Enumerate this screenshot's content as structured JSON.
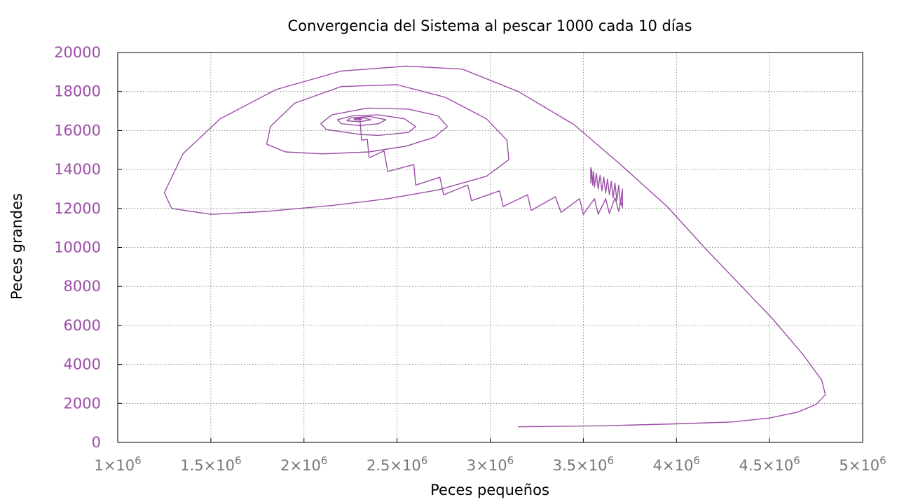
{
  "chart_data": {
    "type": "line",
    "title": "Convergencia del Sistema al pescar 1000 cada 10 días",
    "xlabel": "Peces pequeños",
    "ylabel": "Peces grandes",
    "xlim": [
      1000000,
      5000000
    ],
    "ylim": [
      0,
      20000
    ],
    "grid": true,
    "x_ticks": [
      {
        "mant": "1",
        "exp": "6"
      },
      {
        "mant": "1.5",
        "exp": "6"
      },
      {
        "mant": "2",
        "exp": "6"
      },
      {
        "mant": "2.5",
        "exp": "6"
      },
      {
        "mant": "3",
        "exp": "6"
      },
      {
        "mant": "3.5",
        "exp": "6"
      },
      {
        "mant": "4",
        "exp": "6"
      },
      {
        "mant": "4.5",
        "exp": "6"
      },
      {
        "mant": "5",
        "exp": "6"
      }
    ],
    "y_ticks": [
      "0",
      "2000",
      "4000",
      "6000",
      "8000",
      "10000",
      "12000",
      "14000",
      "16000",
      "18000",
      "20000"
    ],
    "colors": {
      "series": "#9b4ea6",
      "ytick": "#9b4ea6"
    },
    "series": [
      {
        "points": [
          [
            3150000,
            800
          ],
          [
            3600000,
            850
          ],
          [
            4000000,
            950
          ],
          [
            4300000,
            1050
          ],
          [
            4500000,
            1250
          ],
          [
            4650000,
            1550
          ],
          [
            4750000,
            1950
          ],
          [
            4800000,
            2450
          ],
          [
            4780000,
            3200
          ],
          [
            4680000,
            4500
          ],
          [
            4520000,
            6300
          ],
          [
            4350000,
            8000
          ],
          [
            4150000,
            10000
          ],
          [
            3950000,
            12100
          ],
          [
            3700000,
            14250
          ],
          [
            3450000,
            16300
          ],
          [
            3150000,
            18000
          ],
          [
            2850000,
            19150
          ],
          [
            2550000,
            19300
          ],
          [
            2200000,
            19050
          ],
          [
            1850000,
            18100
          ],
          [
            1550000,
            16600
          ],
          [
            1350000,
            14800
          ],
          [
            1250000,
            12800
          ],
          [
            1290000,
            12000
          ],
          [
            1500000,
            11700
          ],
          [
            1800000,
            11850
          ],
          [
            2150000,
            12150
          ],
          [
            2450000,
            12500
          ],
          [
            2720000,
            12950
          ],
          [
            2980000,
            13650
          ],
          [
            3100000,
            14500
          ],
          [
            3090000,
            15500
          ],
          [
            2980000,
            16600
          ],
          [
            2760000,
            17700
          ],
          [
            2500000,
            18350
          ],
          [
            2200000,
            18250
          ],
          [
            1950000,
            17400
          ],
          [
            1820000,
            16200
          ],
          [
            1800000,
            15300
          ],
          [
            1900000,
            14900
          ],
          [
            2100000,
            14800
          ],
          [
            2350000,
            14900
          ],
          [
            2550000,
            15200
          ],
          [
            2700000,
            15650
          ],
          [
            2770000,
            16200
          ],
          [
            2720000,
            16750
          ],
          [
            2560000,
            17100
          ],
          [
            2340000,
            17150
          ],
          [
            2150000,
            16800
          ],
          [
            2090000,
            16350
          ],
          [
            2120000,
            16050
          ],
          [
            2300000,
            15800
          ],
          [
            2400000,
            15750
          ],
          [
            2560000,
            15900
          ],
          [
            2600000,
            16200
          ],
          [
            2540000,
            16600
          ],
          [
            2400000,
            16800
          ],
          [
            2260000,
            16750
          ],
          [
            2180000,
            16550
          ],
          [
            2200000,
            16350
          ],
          [
            2300000,
            16250
          ],
          [
            2400000,
            16350
          ],
          [
            2440000,
            16550
          ],
          [
            2350000,
            16720
          ],
          [
            2250000,
            16640
          ],
          [
            2230000,
            16500
          ],
          [
            2300000,
            16450
          ],
          [
            2360000,
            16550
          ],
          [
            2320000,
            16650
          ],
          [
            2270000,
            16600
          ],
          [
            2285000,
            16530
          ],
          [
            2310000,
            16560
          ],
          [
            2290000,
            16620
          ],
          [
            2270000,
            16560
          ],
          [
            2295000,
            16550
          ],
          [
            2300000,
            16600
          ]
        ]
      },
      {
        "points": [
          [
            2300000,
            16600
          ],
          [
            2310000,
            15500
          ],
          [
            2340000,
            15550
          ],
          [
            2350000,
            14600
          ],
          [
            2430000,
            14950
          ],
          [
            2450000,
            13900
          ],
          [
            2590000,
            14250
          ],
          [
            2600000,
            13200
          ],
          [
            2730000,
            13600
          ],
          [
            2750000,
            12700
          ],
          [
            2880000,
            13200
          ],
          [
            2900000,
            12400
          ],
          [
            3050000,
            12900
          ],
          [
            3070000,
            12100
          ],
          [
            3200000,
            12700
          ],
          [
            3220000,
            11900
          ],
          [
            3350000,
            12600
          ],
          [
            3380000,
            11800
          ],
          [
            3480000,
            12500
          ],
          [
            3500000,
            11700
          ],
          [
            3560000,
            12500
          ],
          [
            3580000,
            11700
          ],
          [
            3620000,
            12500
          ],
          [
            3640000,
            11750
          ],
          [
            3670000,
            12550
          ],
          [
            3690000,
            11850
          ],
          [
            3700000,
            12400
          ],
          [
            3710000,
            12050
          ],
          [
            3710000,
            13000
          ],
          [
            3700000,
            12200
          ],
          [
            3690000,
            13200
          ],
          [
            3680000,
            12400
          ],
          [
            3670000,
            13300
          ],
          [
            3660000,
            12550
          ],
          [
            3650000,
            13400
          ],
          [
            3640000,
            12700
          ],
          [
            3630000,
            13500
          ],
          [
            3620000,
            12800
          ],
          [
            3610000,
            13600
          ],
          [
            3600000,
            12900
          ],
          [
            3590000,
            13700
          ],
          [
            3580000,
            13000
          ],
          [
            3570000,
            13800
          ],
          [
            3560000,
            13100
          ],
          [
            3555000,
            13900
          ],
          [
            3550000,
            13200
          ],
          [
            3545000,
            14000
          ],
          [
            3540000,
            13300
          ],
          [
            3540000,
            14100
          ],
          [
            3540000,
            13400
          ]
        ]
      }
    ]
  }
}
